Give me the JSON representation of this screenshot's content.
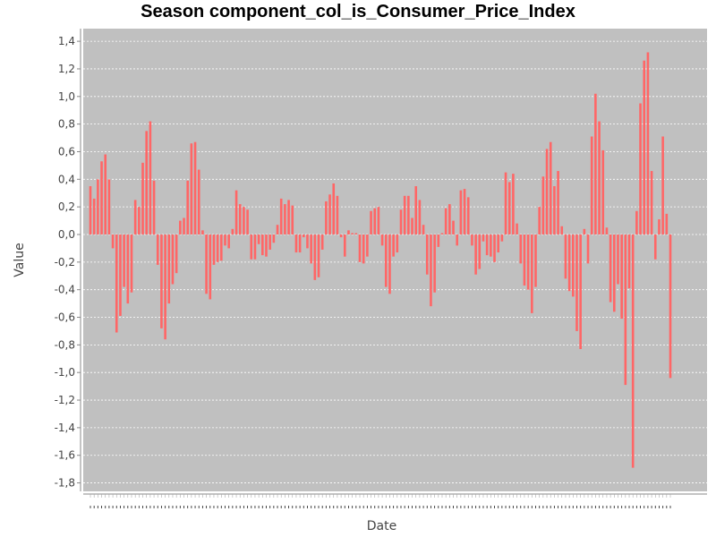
{
  "chart_data": {
    "type": "bar",
    "title": "Season component_col_is_Consumer_Price_Index",
    "xlabel": "Date",
    "ylabel": "Value",
    "ylim": [
      -1.85,
      1.45
    ],
    "yticks": [
      1.4,
      1.2,
      1.0,
      0.8,
      0.6,
      0.4,
      0.2,
      0.0,
      -0.2,
      -0.4,
      -0.6,
      -0.8,
      -1.0,
      -1.2,
      -1.4,
      -1.6,
      -1.8
    ],
    "ytick_labels": [
      "1,4",
      "1,2",
      "1,0",
      "0,8",
      "0,6",
      "0,4",
      "0,2",
      "0,0",
      "-0,2",
      "-0,4",
      "-0,6",
      "-0,8",
      "-1,0",
      "-1,2",
      "-1,4",
      "-1,6",
      "-1,8"
    ],
    "grid": true,
    "bar_color": "#ff6666",
    "plot_background": "#c0c0c0",
    "series": [
      {
        "values": [
          0.35,
          0.26,
          0.4,
          0.53,
          0.58,
          0.4,
          -0.1,
          -0.71,
          -0.59,
          -0.38,
          -0.5,
          -0.42,
          0.25,
          0.2,
          0.52,
          0.75,
          0.82,
          0.39,
          -0.22,
          -0.68,
          -0.76,
          -0.5,
          -0.36,
          -0.28,
          0.1,
          0.12,
          0.39,
          0.66,
          0.67,
          0.47,
          0.03,
          -0.43,
          -0.47,
          -0.22,
          -0.2,
          -0.19,
          -0.08,
          -0.1,
          0.04,
          0.32,
          0.22,
          0.2,
          0.18,
          -0.18,
          -0.18,
          -0.07,
          -0.15,
          -0.16,
          -0.11,
          -0.06,
          0.07,
          0.26,
          0.22,
          0.25,
          0.21,
          -0.13,
          -0.13,
          -0.02,
          -0.1,
          -0.21,
          -0.33,
          -0.31,
          -0.11,
          0.24,
          0.29,
          0.37,
          0.28,
          -0.02,
          -0.16,
          0.03,
          0.01,
          0.01,
          -0.2,
          -0.21,
          -0.16,
          0.17,
          0.19,
          0.2,
          -0.08,
          -0.38,
          -0.43,
          -0.16,
          -0.13,
          0.18,
          0.28,
          0.28,
          0.12,
          0.35,
          0.25,
          0.07,
          -0.29,
          -0.52,
          -0.42,
          -0.09,
          0.01,
          0.19,
          0.22,
          0.1,
          -0.08,
          0.32,
          0.33,
          0.27,
          -0.08,
          -0.29,
          -0.25,
          -0.05,
          -0.15,
          -0.16,
          -0.2,
          -0.13,
          -0.05,
          0.45,
          0.38,
          0.44,
          0.08,
          -0.21,
          -0.37,
          -0.4,
          -0.57,
          -0.38,
          0.2,
          0.42,
          0.62,
          0.67,
          0.35,
          0.46,
          0.06,
          -0.32,
          -0.41,
          -0.45,
          -0.7,
          -0.83,
          0.04,
          -0.21,
          0.71,
          1.02,
          0.82,
          0.61,
          0.05,
          -0.49,
          -0.56,
          -0.36,
          -0.61,
          -1.09,
          -0.39,
          -1.69,
          0.17,
          0.95,
          1.26,
          1.32,
          0.46,
          -0.18,
          0.11,
          0.71,
          0.15,
          -1.04
        ]
      }
    ]
  }
}
